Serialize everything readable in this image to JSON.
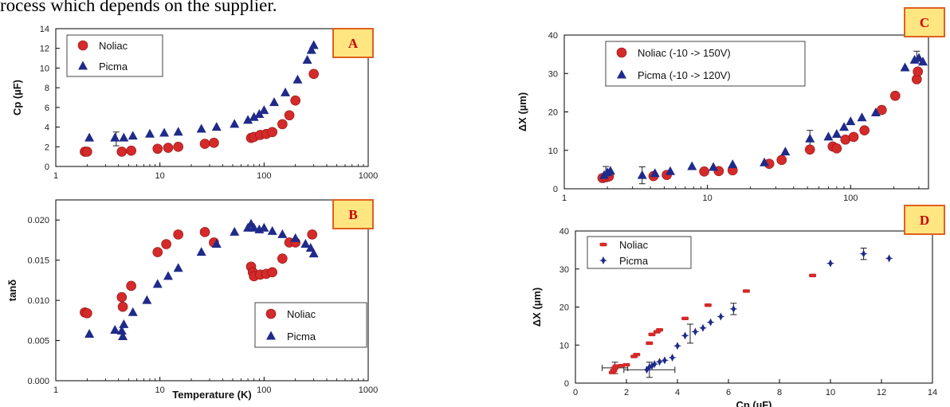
{
  "header_text": "rocess which depends on the supplier.",
  "colors": {
    "noliac": "#d42a2a",
    "picma": "#1f2a8a",
    "panel_label_border": "#e06020",
    "panel_label_fill": "#ffe680",
    "panel_label_text": "#cc0000"
  },
  "chart_data": [
    {
      "id": "A",
      "type": "scatter",
      "panel_label": "A",
      "xlabel": "",
      "ylabel": "Cp (µF)",
      "xscale": "log",
      "xlim": [
        1,
        1000
      ],
      "ylim": [
        0,
        14
      ],
      "x_ticks": [
        1,
        10,
        100,
        1000
      ],
      "x_tick_labels": [
        "1",
        "10",
        "100",
        "1000"
      ],
      "y_ticks": [
        0,
        2,
        4,
        6,
        8,
        10,
        12,
        14
      ],
      "y_tick_labels": [
        "0",
        "2",
        "4",
        "6",
        "8",
        "10",
        "12",
        "14"
      ],
      "legend": {
        "placement": "top-left",
        "entries": [
          "Noliac",
          "Picma"
        ]
      },
      "series": [
        {
          "name": "Noliac",
          "marker": "circle",
          "points": [
            [
              1.9,
              1.5
            ],
            [
              2.0,
              1.5
            ],
            [
              4.3,
              1.5
            ],
            [
              5.3,
              1.6
            ],
            [
              9.5,
              1.8
            ],
            [
              12,
              1.9
            ],
            [
              15,
              2.0
            ],
            [
              27,
              2.3
            ],
            [
              33,
              2.4
            ],
            [
              75,
              2.9
            ],
            [
              80,
              3.0
            ],
            [
              92,
              3.2
            ],
            [
              105,
              3.3
            ],
            [
              120,
              3.5
            ],
            [
              150,
              4.3
            ],
            [
              175,
              5.2
            ],
            [
              200,
              6.7
            ],
            [
              300,
              9.4
            ]
          ]
        },
        {
          "name": "Picma",
          "marker": "triangle",
          "points": [
            [
              2.1,
              2.9
            ],
            [
              3.7,
              2.9
            ],
            [
              4.5,
              2.9
            ],
            [
              5.5,
              3.1
            ],
            [
              8,
              3.3
            ],
            [
              11,
              3.4
            ],
            [
              15,
              3.5
            ],
            [
              25,
              3.8
            ],
            [
              35,
              4.0
            ],
            [
              52,
              4.3
            ],
            [
              70,
              4.7
            ],
            [
              80,
              5.0
            ],
            [
              90,
              5.3
            ],
            [
              100,
              5.7
            ],
            [
              125,
              6.5
            ],
            [
              160,
              7.5
            ],
            [
              210,
              8.8
            ],
            [
              260,
              10.8
            ],
            [
              285,
              11.8
            ],
            [
              300,
              12.3
            ]
          ]
        }
      ],
      "error_bars": [
        {
          "x": 3.8,
          "y": 2.8,
          "dy": 0.7,
          "series": "Picma"
        }
      ]
    },
    {
      "id": "B",
      "type": "scatter",
      "panel_label": "B",
      "xlabel": "Temperature (K)",
      "ylabel": "tanδ",
      "xscale": "log",
      "xlim": [
        1,
        1000
      ],
      "ylim": [
        0,
        0.0225
      ],
      "x_ticks": [
        1,
        10,
        100,
        1000
      ],
      "x_tick_labels": [
        "1",
        "10",
        "100",
        "1000"
      ],
      "y_ticks": [
        0,
        0.005,
        0.01,
        0.015,
        0.02
      ],
      "y_tick_labels": [
        "0.000",
        "0.005",
        "0.010",
        "0.015",
        "0.020"
      ],
      "legend": {
        "placement": "bottom-right",
        "entries": [
          "Noliac",
          "Picma"
        ]
      },
      "series": [
        {
          "name": "Noliac",
          "marker": "circle",
          "points": [
            [
              1.9,
              0.0085
            ],
            [
              2.0,
              0.0084
            ],
            [
              4.3,
              0.0104
            ],
            [
              4.4,
              0.0092
            ],
            [
              5.3,
              0.0118
            ],
            [
              9.5,
              0.016
            ],
            [
              11.5,
              0.017
            ],
            [
              15,
              0.0182
            ],
            [
              27,
              0.0185
            ],
            [
              33,
              0.0172
            ],
            [
              75,
              0.0142
            ],
            [
              78,
              0.0135
            ],
            [
              80,
              0.013
            ],
            [
              92,
              0.0132
            ],
            [
              105,
              0.0133
            ],
            [
              120,
              0.0135
            ],
            [
              150,
              0.0152
            ],
            [
              175,
              0.0172
            ],
            [
              200,
              0.0172
            ],
            [
              290,
              0.0182
            ]
          ]
        },
        {
          "name": "Picma",
          "marker": "triangle",
          "points": [
            [
              2.1,
              0.0058
            ],
            [
              3.7,
              0.0063
            ],
            [
              4.3,
              0.0062
            ],
            [
              4.4,
              0.0055
            ],
            [
              4.5,
              0.007
            ],
            [
              5.5,
              0.0085
            ],
            [
              7.5,
              0.01
            ],
            [
              9.5,
              0.012
            ],
            [
              12,
              0.013
            ],
            [
              15,
              0.014
            ],
            [
              25,
              0.016
            ],
            [
              35,
              0.017
            ],
            [
              52,
              0.0185
            ],
            [
              70,
              0.019
            ],
            [
              75,
              0.0195
            ],
            [
              80,
              0.019
            ],
            [
              90,
              0.0188
            ],
            [
              100,
              0.019
            ],
            [
              120,
              0.0186
            ],
            [
              150,
              0.0182
            ],
            [
              200,
              0.0177
            ],
            [
              250,
              0.017
            ],
            [
              280,
              0.0165
            ],
            [
              300,
              0.0158
            ]
          ]
        }
      ]
    },
    {
      "id": "C",
      "type": "scatter",
      "panel_label": "C",
      "xlabel": "",
      "ylabel": "ΔX (µm)",
      "xscale": "log",
      "xlim": [
        1,
        350
      ],
      "ylim": [
        0,
        40
      ],
      "x_ticks": [
        1,
        10,
        100
      ],
      "x_tick_labels": [
        "1",
        "10",
        "100"
      ],
      "y_ticks": [
        0,
        10,
        20,
        30,
        40
      ],
      "y_tick_labels": [
        "0",
        "10",
        "20",
        "30",
        "40"
      ],
      "legend": {
        "placement": "top-left",
        "entries": [
          "Noliac (-10 -> 150V)",
          "Picma (-10 -> 120V)"
        ]
      },
      "series": [
        {
          "name": "Noliac (-10 -> 150V)",
          "marker": "circle",
          "points": [
            [
              1.85,
              2.8
            ],
            [
              1.95,
              3.0
            ],
            [
              2.05,
              3.2
            ],
            [
              4.2,
              3.3
            ],
            [
              5.2,
              3.6
            ],
            [
              9.5,
              4.5
            ],
            [
              12,
              4.6
            ],
            [
              15,
              4.8
            ],
            [
              27,
              6.5
            ],
            [
              33,
              7.5
            ],
            [
              52,
              10.2
            ],
            [
              75,
              11.0
            ],
            [
              80,
              10.5
            ],
            [
              92,
              12.8
            ],
            [
              105,
              13.5
            ],
            [
              125,
              15.2
            ],
            [
              165,
              20.5
            ],
            [
              205,
              24.2
            ],
            [
              290,
              28.5
            ],
            [
              295,
              30.5
            ]
          ]
        },
        {
          "name": "Picma (-10 -> 120V)",
          "marker": "triangle",
          "points": [
            [
              1.9,
              3.5
            ],
            [
              2.0,
              4.2
            ],
            [
              2.1,
              4.6
            ],
            [
              3.5,
              3.5
            ],
            [
              4.3,
              4.0
            ],
            [
              5.5,
              4.5
            ],
            [
              7.8,
              5.8
            ],
            [
              11,
              5.6
            ],
            [
              15,
              6.3
            ],
            [
              25,
              6.8
            ],
            [
              35,
              9.6
            ],
            [
              52,
              13.0
            ],
            [
              70,
              13.5
            ],
            [
              80,
              14.2
            ],
            [
              90,
              16.0
            ],
            [
              100,
              17.5
            ],
            [
              120,
              18.5
            ],
            [
              150,
              19.8
            ],
            [
              240,
              31.5
            ],
            [
              280,
              33.5
            ],
            [
              300,
              34.0
            ],
            [
              320,
              33.0
            ]
          ]
        }
      ],
      "error_bars": [
        {
          "x": 1.95,
          "y": 4.0,
          "dy": 1.8
        },
        {
          "x": 3.5,
          "y": 3.5,
          "dy": 2.2
        },
        {
          "x": 52,
          "y": 13.0,
          "dy": 2.2
        },
        {
          "x": 290,
          "y": 34.5,
          "dy": 1.3
        }
      ]
    },
    {
      "id": "D",
      "type": "scatter",
      "panel_label": "D",
      "xlabel": "Cp (µF)",
      "ylabel": "ΔX (µm)",
      "xscale": "linear",
      "xlim": [
        0,
        14
      ],
      "ylim": [
        0,
        40
      ],
      "x_ticks": [
        0,
        2,
        4,
        6,
        8,
        10,
        12,
        14
      ],
      "x_tick_labels": [
        "0",
        "2",
        "4",
        "6",
        "8",
        "10",
        "12",
        "14"
      ],
      "y_ticks": [
        0,
        10,
        20,
        30,
        40
      ],
      "y_tick_labels": [
        "0",
        "10",
        "20",
        "30",
        "40"
      ],
      "legend": {
        "placement": "top-left",
        "entries": [
          "Noliac",
          "Picma"
        ]
      },
      "series": [
        {
          "name": "Noliac",
          "marker": "dash",
          "points": [
            [
              1.45,
              2.8
            ],
            [
              1.5,
              3.3
            ],
            [
              1.55,
              4.0
            ],
            [
              1.6,
              4.5
            ],
            [
              1.8,
              4.6
            ],
            [
              2.0,
              4.8
            ],
            [
              2.3,
              7.0
            ],
            [
              2.4,
              7.5
            ],
            [
              2.9,
              10.5
            ],
            [
              3.0,
              12.8
            ],
            [
              3.2,
              13.5
            ],
            [
              3.3,
              14.0
            ],
            [
              4.3,
              17.0
            ],
            [
              5.2,
              20.5
            ],
            [
              6.7,
              24.2
            ],
            [
              9.3,
              28.3
            ]
          ]
        },
        {
          "name": "Picma",
          "marker": "star",
          "points": [
            [
              2.8,
              3.5
            ],
            [
              2.9,
              4.2
            ],
            [
              3.0,
              4.5
            ],
            [
              3.1,
              5.0
            ],
            [
              3.3,
              5.6
            ],
            [
              3.5,
              6.0
            ],
            [
              3.8,
              6.7
            ],
            [
              4.0,
              9.8
            ],
            [
              4.3,
              12.5
            ],
            [
              4.7,
              13.5
            ],
            [
              5.0,
              14.5
            ],
            [
              5.3,
              16.0
            ],
            [
              5.7,
              17.5
            ],
            [
              6.2,
              19.5
            ],
            [
              10.0,
              31.5
            ],
            [
              11.3,
              34.0
            ],
            [
              12.3,
              32.8
            ]
          ]
        }
      ],
      "error_bars": [
        {
          "x": 1.55,
          "y": 4.0,
          "dx": 0.5,
          "dy": 1.5
        },
        {
          "x": 2.9,
          "y": 3.5,
          "dx": 1.0,
          "dy": 2.0
        },
        {
          "x": 4.5,
          "y": 13.0,
          "dy": 2.5
        },
        {
          "x": 6.2,
          "y": 19.5,
          "dy": 1.5
        },
        {
          "x": 11.3,
          "y": 34.0,
          "dy": 1.5
        }
      ]
    }
  ]
}
